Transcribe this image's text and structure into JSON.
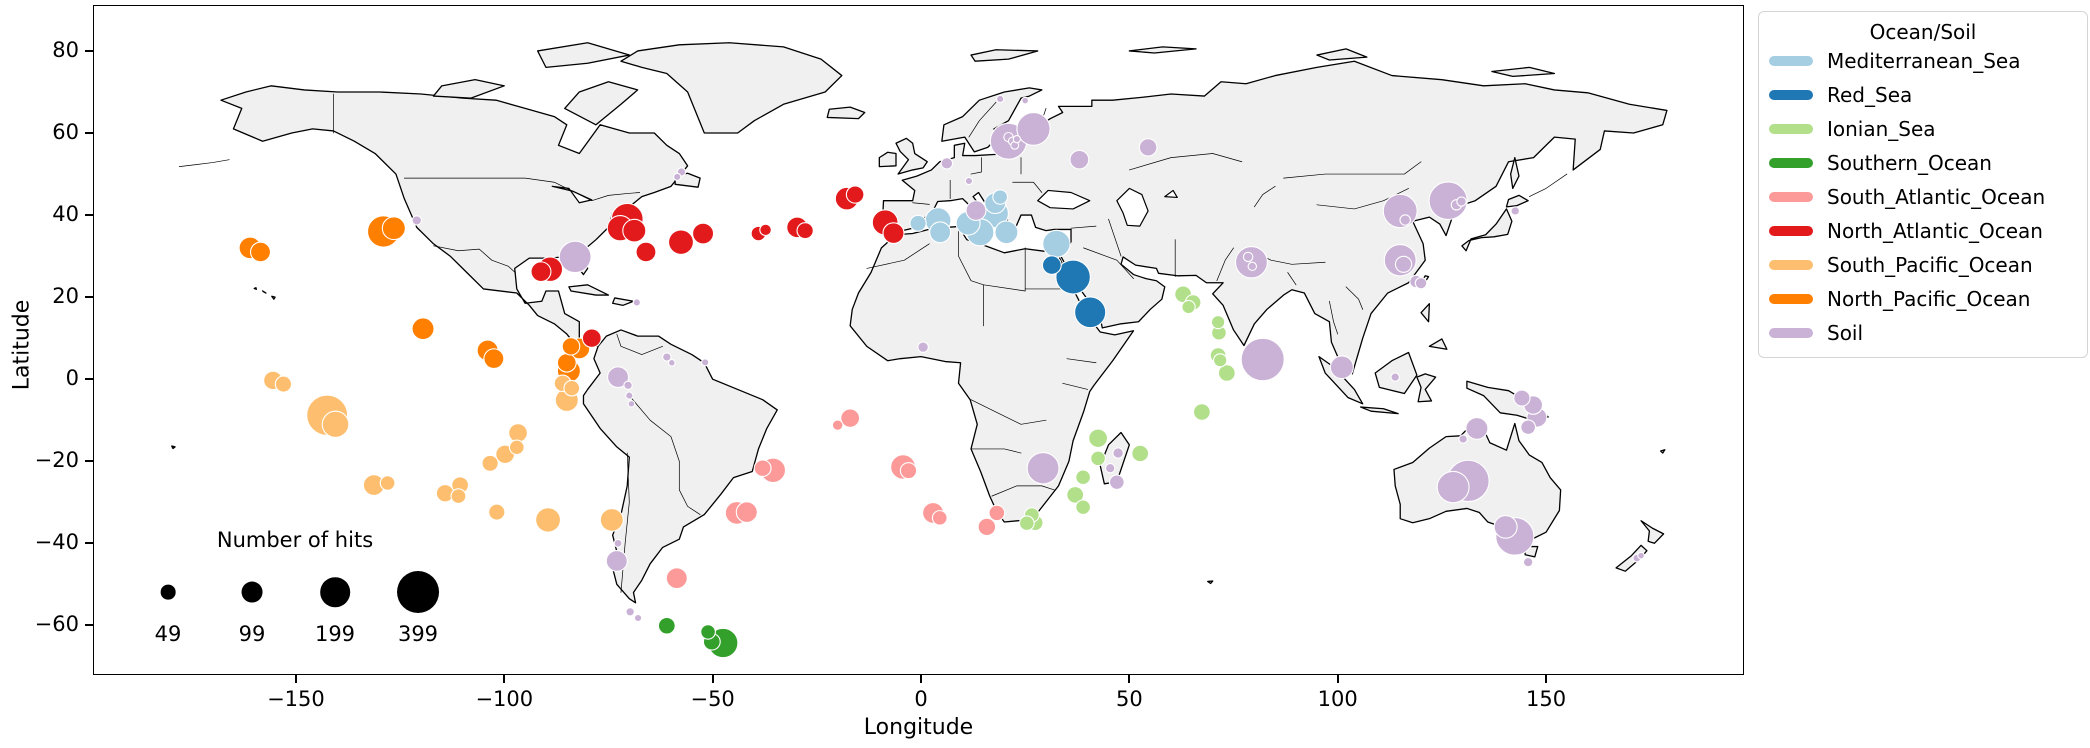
{
  "axes": {
    "x_label": "Longitude",
    "y_label": "Latitude",
    "x_ticks": [
      -150,
      -100,
      -50,
      0,
      50,
      100,
      150
    ],
    "y_ticks": [
      80,
      60,
      40,
      20,
      0,
      -20,
      -40,
      -60
    ],
    "xlim": [
      -198.7,
      197.5
    ],
    "ylim": [
      -72.1,
      91.2
    ]
  },
  "legend": {
    "title": "Ocean/Soil",
    "items": [
      {
        "label": "Mediterranean_Sea",
        "color": "#a6cee3"
      },
      {
        "label": "Red_Sea",
        "color": "#1f78b4"
      },
      {
        "label": "Ionian_Sea",
        "color": "#b2df8a"
      },
      {
        "label": "Southern_Ocean",
        "color": "#33a02c"
      },
      {
        "label": "South_Atlantic_Ocean",
        "color": "#fb9a99"
      },
      {
        "label": "North_Atlantic_Ocean",
        "color": "#e31a1c"
      },
      {
        "label": "South_Pacific_Ocean",
        "color": "#fdbf6f"
      },
      {
        "label": "North_Pacific_Ocean",
        "color": "#ff7f00"
      },
      {
        "label": "Soil",
        "color": "#cab2d6"
      }
    ]
  },
  "size_legend": {
    "title": "Number of hits",
    "values": [
      49,
      99,
      199,
      399
    ]
  },
  "map": {
    "land_fill": "#f0f0f0",
    "coast_color": "#000000",
    "ocean_color": "#ffffff"
  },
  "chart_data": {
    "type": "scatter",
    "subtype": "bubble-map",
    "projection": "equirectangular",
    "x_field": "longitude",
    "y_field": "latitude",
    "size_field": "hits",
    "size_reference": [
      49,
      99,
      199,
      399
    ],
    "series": [
      {
        "name": "Mediterranean_Sea",
        "color": "#a6cee3",
        "points": [
          [
            -0.7,
            38,
            60
          ],
          [
            4.1,
            38.7,
            150
          ],
          [
            4.6,
            35.8,
            100
          ],
          [
            11.3,
            38,
            130
          ],
          [
            14.2,
            35.8,
            170
          ],
          [
            17.5,
            40.4,
            190
          ],
          [
            17.8,
            42.9,
            100
          ],
          [
            19,
            44.4,
            49
          ],
          [
            20.5,
            35.8,
            120
          ],
          [
            32.5,
            33,
            170
          ]
        ]
      },
      {
        "name": "Red_Sea",
        "color": "#1f78b4",
        "points": [
          [
            31.4,
            27.8,
            80
          ],
          [
            36.5,
            24.9,
            270
          ],
          [
            40.6,
            16.3,
            220
          ]
        ]
      },
      {
        "name": "Ionian_Sea",
        "color": "#b2df8a",
        "points": [
          [
            62.9,
            20.7,
            64
          ],
          [
            65.3,
            18.7,
            56
          ],
          [
            64.2,
            17.6,
            40
          ],
          [
            71.3,
            13.9,
            40
          ],
          [
            71.5,
            11.3,
            49
          ],
          [
            71.3,
            5.8,
            56
          ],
          [
            71.8,
            4.6,
            40
          ],
          [
            73.4,
            1.5,
            64
          ],
          [
            67.4,
            -8,
            64
          ],
          [
            42.5,
            -14.4,
            80
          ],
          [
            42.5,
            -19.3,
            49
          ],
          [
            52.6,
            -18.1,
            64
          ],
          [
            38.9,
            -23.9,
            49
          ],
          [
            37,
            -28.2,
            64
          ],
          [
            38.9,
            -31.2,
            49
          ],
          [
            26.6,
            -33.1,
            49
          ],
          [
            25.4,
            -35.1,
            49
          ],
          [
            27.4,
            -35,
            56
          ]
        ]
      },
      {
        "name": "Southern_Ocean",
        "color": "#33a02c",
        "points": [
          [
            -61,
            -60.1,
            64
          ],
          [
            -51.1,
            -61.6,
            49
          ],
          [
            -50.2,
            -64,
            64
          ],
          [
            -47.5,
            -64.3,
            200
          ]
        ]
      },
      {
        "name": "South_Atlantic_Ocean",
        "color": "#fb9a99",
        "points": [
          [
            -17,
            -9.5,
            80
          ],
          [
            -20,
            -11.2,
            25
          ],
          [
            -35.5,
            -22.2,
            140
          ],
          [
            -38,
            -21.7,
            64
          ],
          [
            -44.2,
            -32.6,
            120
          ],
          [
            -41.8,
            -32.4,
            100
          ],
          [
            -4.3,
            -21.4,
            140
          ],
          [
            -3,
            -22.3,
            60
          ],
          [
            2.9,
            -32.6,
            100
          ],
          [
            4.5,
            -33.8,
            49
          ],
          [
            15.8,
            -36,
            70
          ],
          [
            18.2,
            -32.6,
            56
          ],
          [
            -58.6,
            -48.5,
            100
          ]
        ]
      },
      {
        "name": "North_Atlantic_Ocean",
        "color": "#e31a1c",
        "points": [
          [
            -89,
            26.8,
            140
          ],
          [
            -91.2,
            26.2,
            90
          ],
          [
            -79,
            10,
            80
          ],
          [
            -70.5,
            39,
            230
          ],
          [
            -72.2,
            36.8,
            150
          ],
          [
            -68.8,
            36.2,
            120
          ],
          [
            -66,
            31,
            90
          ],
          [
            -57.6,
            33.4,
            140
          ],
          [
            -52.3,
            35.5,
            100
          ],
          [
            -39,
            35.5,
            49
          ],
          [
            -37.3,
            36.4,
            30
          ],
          [
            -29.7,
            37,
            100
          ],
          [
            -27.8,
            36.2,
            60
          ],
          [
            -17.8,
            44,
            120
          ],
          [
            -15.8,
            45,
            70
          ],
          [
            -8.6,
            38.2,
            150
          ],
          [
            -6.6,
            35.6,
            100
          ]
        ]
      },
      {
        "name": "South_Pacific_Ocean",
        "color": "#fdbf6f",
        "points": [
          [
            -155.5,
            -0.3,
            80
          ],
          [
            -153,
            -1.2,
            60
          ],
          [
            -142.5,
            -8.8,
            380
          ],
          [
            -140.5,
            -11,
            160
          ],
          [
            -131.3,
            -25.8,
            100
          ],
          [
            -128,
            -25.3,
            49
          ],
          [
            -114.2,
            -27.8,
            70
          ],
          [
            -110.6,
            -25.8,
            64
          ],
          [
            -111,
            -28.5,
            50
          ],
          [
            -103.4,
            -20.5,
            60
          ],
          [
            -99.8,
            -18.3,
            80
          ],
          [
            -97,
            -16.6,
            49
          ],
          [
            -96.7,
            -13.1,
            80
          ],
          [
            -101.8,
            -32.4,
            60
          ],
          [
            -89.5,
            -34.3,
            140
          ],
          [
            -74.2,
            -34.3,
            120
          ],
          [
            -86,
            -1,
            64
          ],
          [
            -83.8,
            -2.2,
            56
          ],
          [
            -85,
            -5.1,
            120
          ]
        ]
      },
      {
        "name": "North_Pacific_Ocean",
        "color": "#ff7f00",
        "points": [
          [
            -161,
            32,
            110
          ],
          [
            -158.5,
            31,
            90
          ],
          [
            -129,
            36,
            230
          ],
          [
            -126.5,
            36.8,
            120
          ],
          [
            -119.5,
            12.3,
            110
          ],
          [
            -104,
            7,
            100
          ],
          [
            -102.5,
            5,
            90
          ],
          [
            -84,
            8,
            70
          ],
          [
            -82,
            7.5,
            100
          ],
          [
            -85,
            4,
            80
          ],
          [
            -84.5,
            2,
            120
          ]
        ]
      },
      {
        "name": "Soil",
        "color": "#cab2d6",
        "points": [
          [
            -121,
            38.7,
            20
          ],
          [
            -83,
            29.8,
            230
          ],
          [
            -57.5,
            50.5,
            16
          ],
          [
            -58.5,
            49.3,
            12
          ],
          [
            -68.2,
            18.7,
            12
          ],
          [
            -72.7,
            0.5,
            100
          ],
          [
            -70.3,
            -1.5,
            16
          ],
          [
            -70,
            -4,
            12
          ],
          [
            -69.5,
            -6,
            10
          ],
          [
            -61,
            5.4,
            16
          ],
          [
            -59.8,
            4,
            10
          ],
          [
            -51.8,
            4.1,
            12
          ],
          [
            -73,
            -44.3,
            100
          ],
          [
            -72.7,
            -40,
            14
          ],
          [
            -69.8,
            -56.7,
            16
          ],
          [
            -67.9,
            -58.2,
            12
          ],
          [
            6.2,
            52.6,
            30
          ],
          [
            11.5,
            48.3,
            12
          ],
          [
            13.2,
            41.1,
            90
          ],
          [
            21,
            58,
            300
          ],
          [
            27,
            61,
            250
          ],
          [
            21,
            59,
            20
          ],
          [
            22,
            58,
            16
          ],
          [
            22.5,
            57,
            14
          ],
          [
            23,
            58.5,
            12
          ],
          [
            19,
            68.3,
            12
          ],
          [
            25,
            67.9,
            10
          ],
          [
            38,
            53.5,
            80
          ],
          [
            54.5,
            56.5,
            70
          ],
          [
            0.5,
            7.8,
            25
          ],
          [
            29.3,
            -21.7,
            230
          ],
          [
            47.3,
            -18,
            25
          ],
          [
            45.4,
            -21.7,
            20
          ],
          [
            47,
            -25.1,
            49
          ],
          [
            79.3,
            28.5,
            230
          ],
          [
            78.5,
            29.8,
            20
          ],
          [
            79.5,
            27.5,
            16
          ],
          [
            82,
            4.8,
            420
          ],
          [
            101,
            2.9,
            120
          ],
          [
            113.8,
            0.5,
            16
          ],
          [
            120,
            23.4,
            30
          ],
          [
            115,
            41,
            260
          ],
          [
            116.2,
            38.8,
            25
          ],
          [
            126.5,
            43.5,
            330
          ],
          [
            128.5,
            42.5,
            25
          ],
          [
            129.7,
            43.3,
            20
          ],
          [
            142.6,
            41,
            16
          ],
          [
            115,
            29,
            230
          ],
          [
            115.8,
            28,
            60
          ],
          [
            118.8,
            23.8,
            36
          ],
          [
            144.2,
            -4.6,
            60
          ],
          [
            146.9,
            -6.3,
            80
          ],
          [
            147.8,
            -9.3,
            90
          ],
          [
            145.7,
            -11.7,
            49
          ],
          [
            133.4,
            -12,
            110
          ],
          [
            130.1,
            -14.6,
            16
          ],
          [
            131.3,
            -24.8,
            400
          ],
          [
            127.7,
            -26.3,
            230
          ],
          [
            142.5,
            -38.3,
            330
          ],
          [
            140.3,
            -36,
            120
          ],
          [
            145.7,
            -44.6,
            20
          ],
          [
            171.8,
            -43.6,
            14
          ],
          [
            172.8,
            -43,
            10
          ]
        ]
      }
    ]
  }
}
